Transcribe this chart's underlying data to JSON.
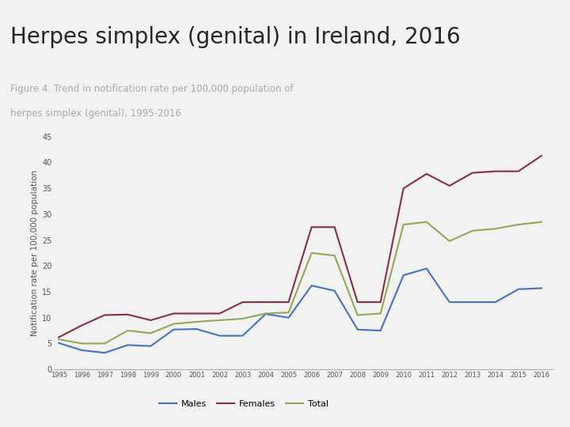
{
  "title": "Herpes simplex (genital) in Ireland, 2016",
  "subtitle_line1": "Figure 4. Trend in notification rate per 100,000 population of",
  "subtitle_line2": "herpes simplex (genital), 1995-2016",
  "ylabel": "Notification rate per 100,000 population",
  "years": [
    1995,
    1996,
    1997,
    1998,
    1999,
    2000,
    2001,
    2002,
    2003,
    2004,
    2005,
    2006,
    2007,
    2008,
    2009,
    2010,
    2011,
    2012,
    2013,
    2014,
    2015,
    2016
  ],
  "males": [
    5.1,
    3.7,
    3.2,
    4.7,
    4.5,
    7.7,
    7.8,
    6.5,
    6.5,
    10.7,
    10.0,
    16.2,
    15.2,
    7.7,
    7.5,
    18.2,
    19.5,
    13.0,
    13.0,
    13.0,
    15.5,
    15.7
  ],
  "females": [
    6.2,
    8.5,
    10.5,
    10.6,
    9.5,
    10.8,
    10.8,
    10.8,
    13.0,
    13.0,
    13.0,
    27.5,
    27.5,
    13.0,
    13.0,
    35.0,
    37.8,
    35.5,
    38.0,
    38.3,
    38.3,
    41.3
  ],
  "total": [
    5.8,
    5.0,
    5.0,
    7.5,
    7.0,
    8.8,
    9.2,
    9.5,
    9.8,
    10.8,
    11.0,
    22.5,
    22.0,
    10.5,
    10.8,
    28.0,
    28.5,
    24.8,
    26.8,
    27.2,
    28.0,
    28.5
  ],
  "males_color": "#4472c4",
  "females_color": "#8b2e3f",
  "total_color": "#8faa54",
  "title_color": "#262626",
  "subtitle_color": "#aaaaaa",
  "bg_color": "#f2f2f2",
  "topbar_color": "#8b2e3f",
  "separator_color": "#c8b8a8",
  "ylim": [
    0,
    45
  ],
  "yticks": [
    0,
    5,
    10,
    15,
    20,
    25,
    30,
    35,
    40,
    45
  ]
}
